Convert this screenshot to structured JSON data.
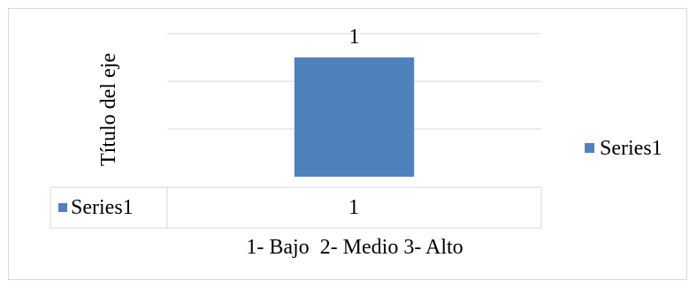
{
  "chart_data": {
    "type": "bar",
    "categories": [
      "1- Bajo  2- Medio 3- Alto"
    ],
    "series": [
      {
        "name": "Series1",
        "values": [
          1
        ],
        "color": "#4f81bd"
      }
    ],
    "ylabel": "Título del eje",
    "xlabel": "",
    "ylim": [
      0,
      1.2
    ],
    "grid": true,
    "legend": "right",
    "data_labels": true,
    "data_table": {
      "rows": [
        {
          "series": "Series1",
          "values": [
            "1"
          ]
        }
      ]
    }
  }
}
